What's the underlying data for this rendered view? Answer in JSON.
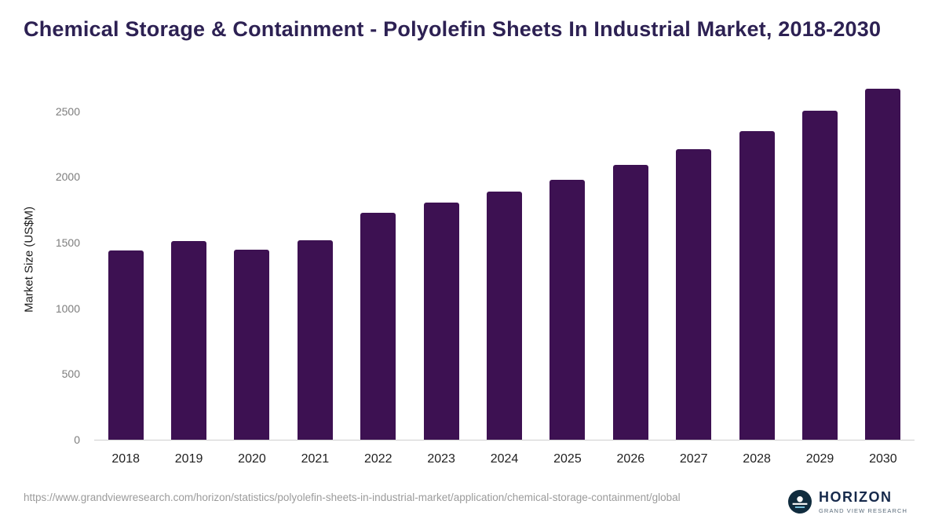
{
  "title": "Chemical Storage & Containment - Polyolefin Sheets In Industrial Market, 2018-2030",
  "chart_data": {
    "type": "bar",
    "categories": [
      "2018",
      "2019",
      "2020",
      "2021",
      "2022",
      "2023",
      "2024",
      "2025",
      "2026",
      "2027",
      "2028",
      "2029",
      "2030"
    ],
    "values": [
      1440,
      1515,
      1445,
      1520,
      1725,
      1805,
      1890,
      1980,
      2090,
      2215,
      2350,
      2505,
      2675
    ],
    "title": "Chemical Storage & Containment - Polyolefin Sheets In Industrial Market, 2018-2030",
    "xlabel": "",
    "ylabel": "Market Size (US$M)",
    "yticks": [
      0,
      500,
      1000,
      1500,
      2000,
      2500
    ],
    "ylim": [
      0,
      2750
    ],
    "grid": false,
    "legend": false
  },
  "colors": {
    "bar": "#3d1152",
    "title": "#2d2153",
    "axis_text": "#7d7d7d",
    "x_tick_text": "#1f1f1f"
  },
  "footer": {
    "source_url": "https://www.grandviewresearch.com/horizon/statistics/polyolefin-sheets-in-industrial-market/application/chemical-storage-containment/global",
    "logo_name": "HORIZON",
    "logo_tagline": "GRAND VIEW RESEARCH"
  }
}
